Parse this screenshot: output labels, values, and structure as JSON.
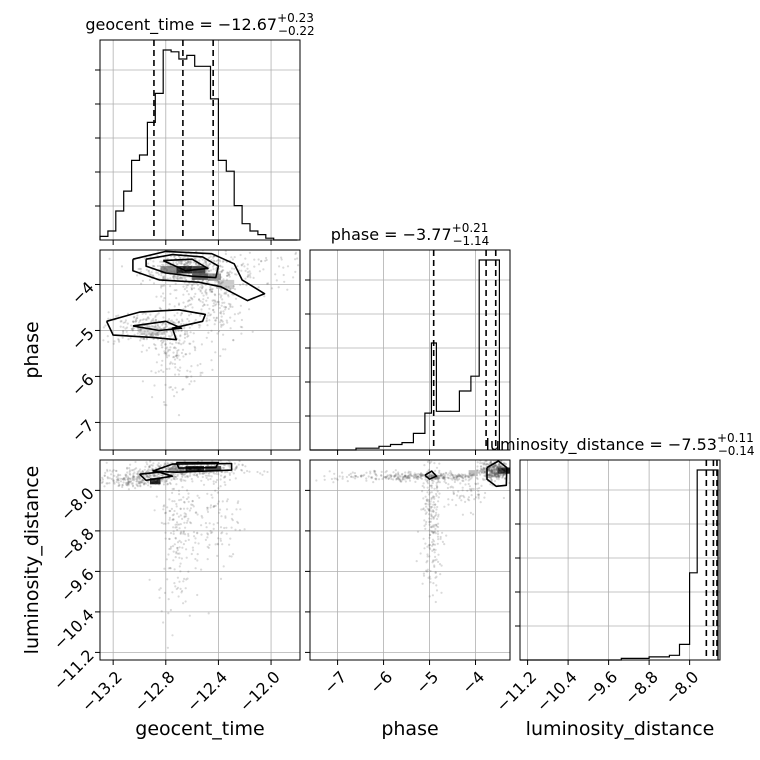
{
  "chart_data": {
    "type": "corner",
    "grid": true,
    "parameters": [
      {
        "name": "geocent_time",
        "median": "-12.67",
        "plus": "+0.23",
        "minus": "−0.22",
        "range": [
          -13.3,
          -11.78
        ],
        "ticks": [
          -13.2,
          -12.8,
          -12.4,
          -12.0
        ],
        "tick_labels": [
          "−13.2",
          "−12.8",
          "−12.4",
          "−12.0"
        ],
        "quantiles": [
          -12.89,
          -12.67,
          -12.44
        ]
      },
      {
        "name": "phase",
        "median": "-3.77",
        "plus": "+0.21",
        "minus": "−1.14",
        "range": [
          -7.6,
          -3.25
        ],
        "ticks": [
          -7,
          -6,
          -5,
          -4
        ],
        "tick_labels": [
          "−7",
          "−6",
          "−5",
          "−4"
        ],
        "quantiles": [
          -4.91,
          -3.77,
          -3.56
        ]
      },
      {
        "name": "luminosity_distance",
        "median": "-7.53",
        "plus": "+0.11",
        "minus": "−0.14",
        "range": [
          -11.35,
          -7.4
        ],
        "ticks": [
          -11.2,
          -10.4,
          -9.6,
          -8.8,
          -8.0
        ],
        "tick_labels": [
          "−11.2",
          "−10.4",
          "−9.6",
          "−8.8",
          "−8.0"
        ],
        "quantiles": [
          -7.67,
          -7.53,
          -7.46
        ]
      }
    ],
    "titles": [
      {
        "prefix": "geocent_time = −12.67",
        "plus": "+0.23",
        "minus": "−0.22"
      },
      {
        "prefix": "phase = −3.77",
        "plus": "+0.21",
        "minus": "−1.14"
      },
      {
        "prefix": "luminosity_distance = −7.53",
        "plus": "+0.11",
        "minus": "−0.14"
      }
    ],
    "axis_labels": {
      "x": [
        "geocent_time",
        "phase",
        "luminosity_distance"
      ],
      "y": [
        "phase",
        "luminosity_distance"
      ]
    },
    "histograms": {
      "geocent_time": {
        "edges": [
          -13.3,
          -13.24,
          -13.18,
          -13.12,
          -13.06,
          -13.0,
          -12.94,
          -12.88,
          -12.82,
          -12.76,
          -12.7,
          -12.64,
          -12.58,
          -12.52,
          -12.46,
          -12.4,
          -12.34,
          -12.28,
          -12.22,
          -12.16,
          -12.1,
          -12.04,
          -11.98,
          -11.92,
          -11.86,
          -11.8
        ],
        "counts": [
          2,
          5,
          16,
          27,
          44,
          47,
          65,
          81,
          105,
          104,
          100,
          102,
          96,
          96,
          78,
          44,
          38,
          19,
          9,
          5,
          3,
          1,
          0,
          0,
          0
        ]
      },
      "phase": {
        "edges": [
          -7.6,
          -7.35,
          -7.1,
          -6.85,
          -6.6,
          -6.35,
          -6.1,
          -5.85,
          -5.6,
          -5.35,
          -5.1,
          -4.96,
          -4.85,
          -4.6,
          -4.35,
          -4.1,
          -3.92,
          -3.76,
          -3.48
        ],
        "counts": [
          0,
          0,
          0,
          0,
          1,
          1,
          2,
          3,
          4,
          9,
          20,
          58,
          21,
          21,
          32,
          40,
          103,
          103
        ]
      },
      "luminosity_distance": {
        "edges": [
          -11.35,
          -10.35,
          -9.35,
          -8.8,
          -8.4,
          -8.2,
          -8.0,
          -7.85,
          -7.72,
          -7.59,
          -7.5,
          -7.44
        ],
        "counts": [
          0,
          0,
          1,
          2,
          3,
          10,
          56,
          122,
          122,
          122,
          122
        ]
      }
    },
    "scatter_regions": [
      {
        "pair": "geocent_time-phase",
        "blobs": [
          {
            "cx": -12.67,
            "cy": -3.65,
            "sx": 0.16,
            "sy": 0.18,
            "n": 380
          },
          {
            "cx": -12.5,
            "cy": -3.95,
            "sx": 0.14,
            "sy": 0.35,
            "n": 200
          },
          {
            "cx": -12.95,
            "cy": -4.95,
            "sx": 0.17,
            "sy": 0.18,
            "n": 220
          },
          {
            "cx": -12.75,
            "cy": -5.4,
            "sx": 0.1,
            "sy": 0.55,
            "n": 180
          },
          {
            "cx": -12.4,
            "cy": -4.6,
            "sx": 0.1,
            "sy": 0.4,
            "n": 120
          },
          {
            "cx": -12.1,
            "cy": -3.7,
            "sx": 0.25,
            "sy": 0.25,
            "n": 90
          }
        ]
      },
      {
        "pair": "geocent_time-luminosity_distance",
        "blobs": [
          {
            "cx": -12.68,
            "cy": -7.6,
            "sx": 0.22,
            "sy": 0.09,
            "n": 420
          },
          {
            "cx": -12.95,
            "cy": -7.75,
            "sx": 0.12,
            "sy": 0.07,
            "n": 160
          },
          {
            "cx": -12.7,
            "cy": -8.7,
            "sx": 0.08,
            "sy": 0.8,
            "n": 220
          },
          {
            "cx": -12.4,
            "cy": -8.4,
            "sx": 0.08,
            "sy": 0.6,
            "n": 110
          },
          {
            "cx": -13.1,
            "cy": -7.85,
            "sx": 0.12,
            "sy": 0.05,
            "n": 80
          }
        ]
      },
      {
        "pair": "phase-luminosity_distance",
        "blobs": [
          {
            "cx": -3.6,
            "cy": -7.6,
            "sx": 0.15,
            "sy": 0.1,
            "n": 380
          },
          {
            "cx": -4.95,
            "cy": -7.73,
            "sx": 0.5,
            "sy": 0.04,
            "n": 250
          },
          {
            "cx": -4.95,
            "cy": -8.6,
            "sx": 0.12,
            "sy": 0.7,
            "n": 230
          },
          {
            "cx": -6.2,
            "cy": -7.72,
            "sx": 0.6,
            "sy": 0.05,
            "n": 90
          },
          {
            "cx": -4.2,
            "cy": -8.0,
            "sx": 0.3,
            "sy": 0.2,
            "n": 80
          }
        ]
      }
    ],
    "density_cells": [
      {
        "pair": "geocent_time-phase",
        "cells": [
          {
            "x": -12.72,
            "y": -3.6,
            "w": 0.12,
            "h": 0.16,
            "level": 0.9
          },
          {
            "x": -12.6,
            "y": -3.6,
            "w": 0.1,
            "h": 0.16,
            "level": 0.75
          },
          {
            "x": -12.6,
            "y": -3.76,
            "w": 0.16,
            "h": 0.14,
            "level": 0.6
          },
          {
            "x": -12.84,
            "y": -3.6,
            "w": 0.12,
            "h": 0.16,
            "level": 0.45
          },
          {
            "x": -12.48,
            "y": -3.76,
            "w": 0.1,
            "h": 0.16,
            "level": 0.4
          },
          {
            "x": -12.4,
            "y": -3.9,
            "w": 0.12,
            "h": 0.2,
            "level": 0.2
          },
          {
            "x": -13.0,
            "y": -4.95,
            "w": 0.2,
            "h": 0.15,
            "level": 0.15
          }
        ]
      },
      {
        "pair": "geocent_time-luminosity_distance",
        "cells": [
          {
            "x": -12.65,
            "y": -7.52,
            "w": 0.14,
            "h": 0.1,
            "level": 0.95
          },
          {
            "x": -12.5,
            "y": -7.52,
            "w": 0.12,
            "h": 0.1,
            "level": 0.7
          },
          {
            "x": -12.92,
            "y": -7.76,
            "w": 0.08,
            "h": 0.12,
            "level": 0.9
          },
          {
            "x": -12.78,
            "y": -7.55,
            "w": 0.12,
            "h": 0.1,
            "level": 0.35
          }
        ]
      },
      {
        "pair": "phase-luminosity_distance",
        "cells": [
          {
            "x": -3.52,
            "y": -7.55,
            "w": 0.3,
            "h": 0.12,
            "level": 0.95
          },
          {
            "x": -3.22,
            "y": -7.55,
            "w": 0.15,
            "h": 0.12,
            "level": 0.5
          },
          {
            "x": -4.15,
            "y": -7.6,
            "w": 0.2,
            "h": 0.12,
            "level": 0.25
          }
        ]
      }
    ],
    "contours": [
      {
        "pair": "geocent_time-phase",
        "paths": [
          [
            [
              -12.95,
              -3.45
            ],
            [
              -12.75,
              -3.35
            ],
            [
              -12.52,
              -3.4
            ],
            [
              -12.4,
              -3.6
            ],
            [
              -12.42,
              -3.85
            ],
            [
              -12.6,
              -3.82
            ],
            [
              -12.8,
              -3.75
            ],
            [
              -12.95,
              -3.6
            ],
            [
              -12.95,
              -3.45
            ]
          ],
          [
            [
              -13.05,
              -3.45
            ],
            [
              -12.8,
              -3.28
            ],
            [
              -12.45,
              -3.33
            ],
            [
              -12.28,
              -3.55
            ],
            [
              -12.22,
              -3.9
            ],
            [
              -12.05,
              -4.2
            ],
            [
              -12.18,
              -4.35
            ],
            [
              -12.38,
              -4.05
            ],
            [
              -12.55,
              -3.95
            ],
            [
              -12.85,
              -3.9
            ],
            [
              -13.05,
              -3.7
            ],
            [
              -13.05,
              -3.45
            ]
          ],
          [
            [
              -12.82,
              -3.48
            ],
            [
              -12.6,
              -3.45
            ],
            [
              -12.48,
              -3.65
            ],
            [
              -12.65,
              -3.7
            ],
            [
              -12.82,
              -3.48
            ]
          ],
          [
            [
              -13.25,
              -4.8
            ],
            [
              -13.0,
              -4.6
            ],
            [
              -12.7,
              -4.55
            ],
            [
              -12.5,
              -4.65
            ],
            [
              -12.52,
              -4.8
            ],
            [
              -12.75,
              -4.95
            ],
            [
              -12.72,
              -5.2
            ],
            [
              -12.9,
              -5.15
            ],
            [
              -13.2,
              -5.1
            ],
            [
              -13.25,
              -4.8
            ]
          ],
          [
            [
              -13.05,
              -4.9
            ],
            [
              -12.8,
              -4.8
            ],
            [
              -12.68,
              -4.95
            ],
            [
              -12.85,
              -5.0
            ],
            [
              -13.05,
              -4.9
            ]
          ]
        ]
      },
      {
        "pair": "geocent_time-luminosity_distance",
        "paths": [
          [
            [
              -13.0,
              -7.68
            ],
            [
              -12.85,
              -7.64
            ],
            [
              -12.75,
              -7.72
            ],
            [
              -12.95,
              -7.8
            ],
            [
              -13.0,
              -7.68
            ]
          ],
          [
            [
              -12.72,
              -7.45
            ],
            [
              -12.4,
              -7.45
            ],
            [
              -12.42,
              -7.55
            ],
            [
              -12.7,
              -7.56
            ],
            [
              -12.72,
              -7.45
            ]
          ],
          [
            [
              -12.9,
              -7.62
            ],
            [
              -12.75,
              -7.48
            ],
            [
              -12.3,
              -7.47
            ],
            [
              -12.3,
              -7.6
            ],
            [
              -12.72,
              -7.64
            ],
            [
              -12.9,
              -7.62
            ]
          ]
        ]
      },
      {
        "pair": "phase-luminosity_distance",
        "paths": [
          [
            [
              -3.75,
              -7.55
            ],
            [
              -3.5,
              -7.42
            ],
            [
              -3.32,
              -7.55
            ],
            [
              -3.33,
              -7.9
            ],
            [
              -3.55,
              -7.92
            ],
            [
              -3.75,
              -7.78
            ],
            [
              -3.75,
              -7.55
            ]
          ],
          [
            [
              -5.1,
              -7.7
            ],
            [
              -4.95,
              -7.62
            ],
            [
              -4.85,
              -7.72
            ],
            [
              -5.0,
              -7.78
            ],
            [
              -5.1,
              -7.7
            ]
          ]
        ]
      }
    ]
  }
}
